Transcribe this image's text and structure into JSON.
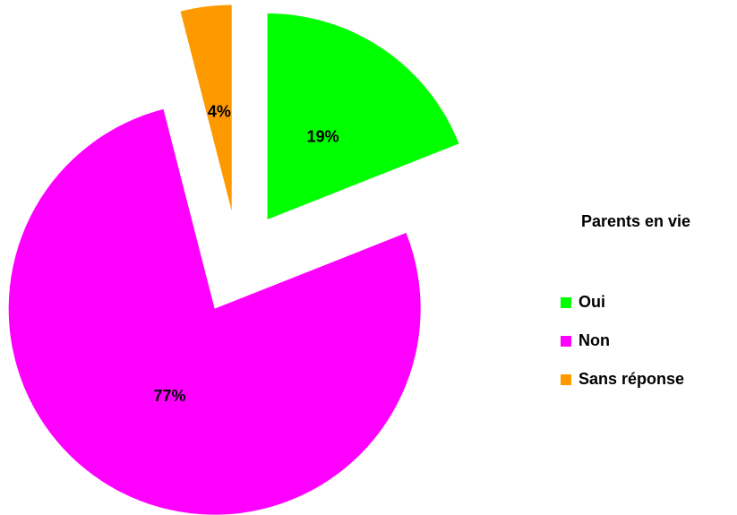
{
  "chart_data": {
    "type": "pie",
    "legend_title": "Parents en vie",
    "categories": [
      "Oui",
      "Non",
      "Sans réponse"
    ],
    "values": [
      19,
      77,
      4
    ],
    "value_labels": [
      "19%",
      "77%",
      "4%"
    ],
    "colors": [
      "#00ff00",
      "#ff00ff",
      "#ff9900"
    ],
    "exploded": true,
    "legend": "right"
  }
}
